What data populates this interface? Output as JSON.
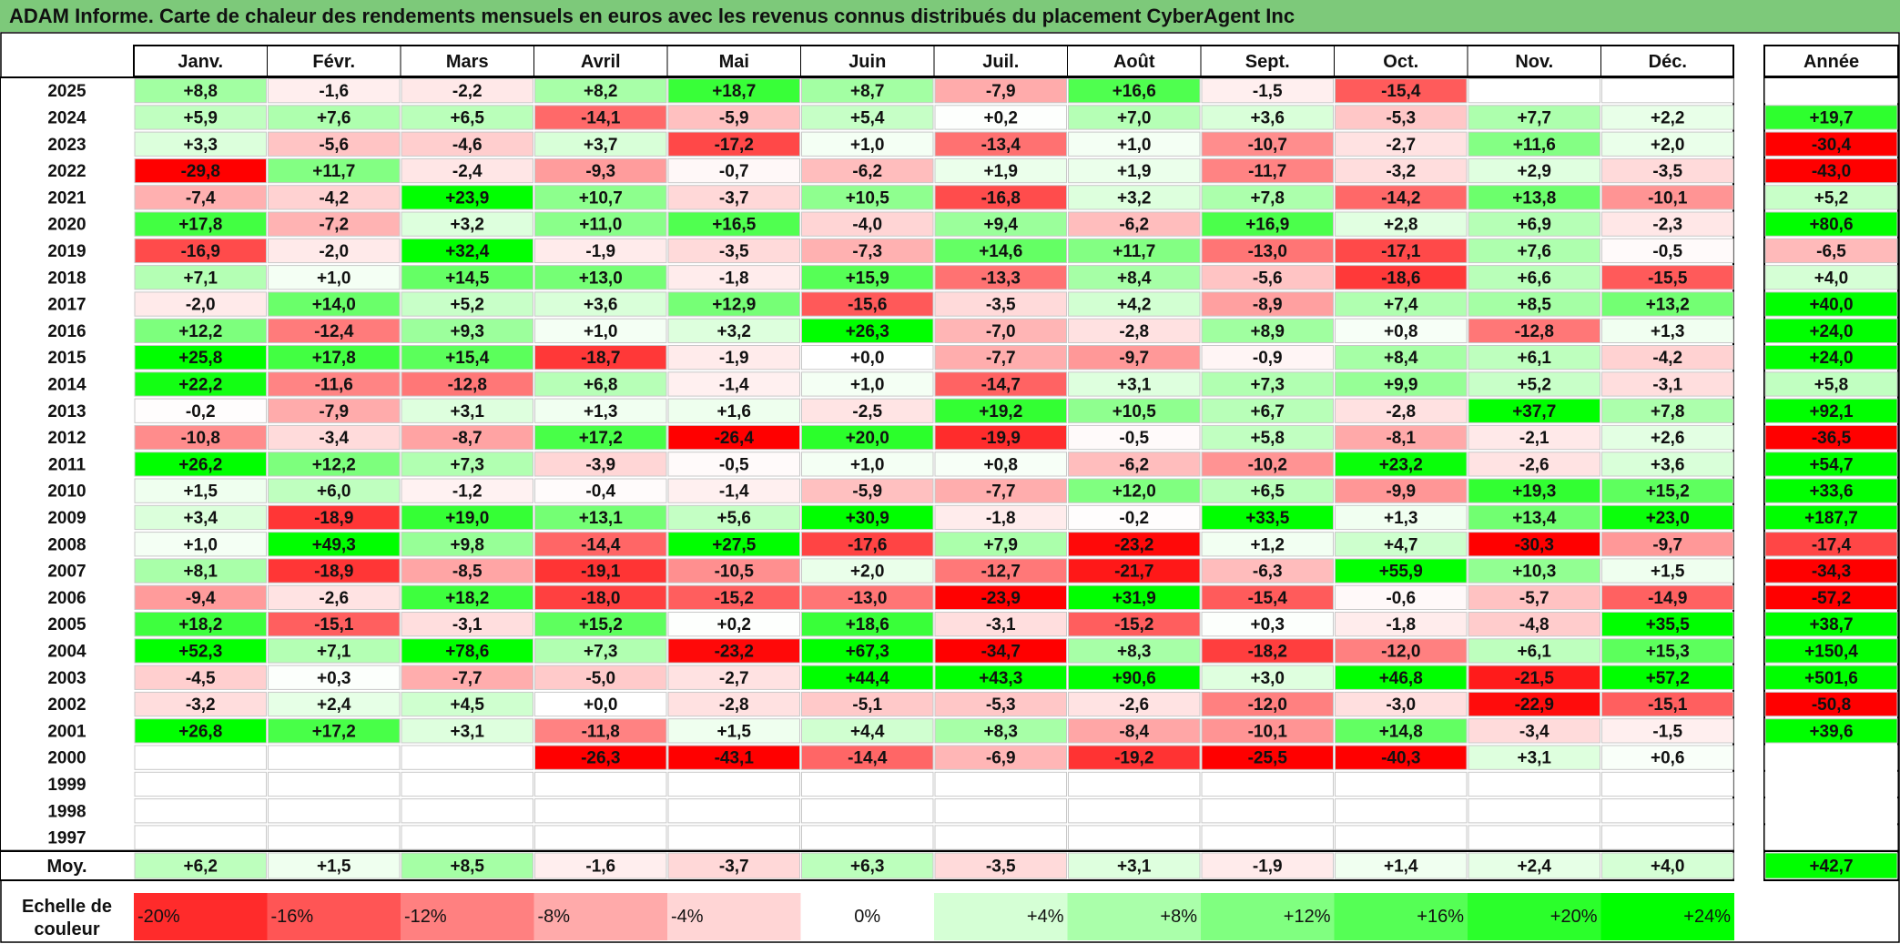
{
  "title": "ADAM Informe. Carte de chaleur des rendements mensuels en euros avec les revenus connus distribués du placement CyberAgent Inc",
  "chart_data": {
    "type": "heatmap",
    "months": [
      "Janv.",
      "Févr.",
      "Mars",
      "Avril",
      "Mai",
      "Juin",
      "Juil.",
      "Août",
      "Sept.",
      "Oct.",
      "Nov.",
      "Déc."
    ],
    "annual_header": "Année",
    "years": [
      "2025",
      "2024",
      "2023",
      "2022",
      "2021",
      "2020",
      "2019",
      "2018",
      "2017",
      "2016",
      "2015",
      "2014",
      "2013",
      "2012",
      "2011",
      "2010",
      "2009",
      "2008",
      "2007",
      "2006",
      "2005",
      "2004",
      "2003",
      "2002",
      "2001",
      "2000",
      "1999",
      "1998",
      "1997"
    ],
    "values": [
      [
        8.8,
        -1.6,
        -2.2,
        8.2,
        18.7,
        8.7,
        -7.9,
        16.6,
        -1.5,
        -15.4,
        null,
        null
      ],
      [
        5.9,
        7.6,
        6.5,
        -14.1,
        -5.9,
        5.4,
        0.2,
        7.0,
        3.6,
        -5.3,
        7.7,
        2.2
      ],
      [
        3.3,
        -5.6,
        -4.6,
        3.7,
        -17.2,
        1.0,
        -13.4,
        1.0,
        -10.7,
        -2.7,
        11.6,
        2.0
      ],
      [
        -29.8,
        11.7,
        -2.4,
        -9.3,
        -0.7,
        -6.2,
        1.9,
        1.9,
        -11.7,
        -3.2,
        2.9,
        -3.5
      ],
      [
        -7.4,
        -4.2,
        23.9,
        10.7,
        -3.7,
        10.5,
        -16.8,
        3.2,
        7.8,
        -14.2,
        13.8,
        -10.1
      ],
      [
        17.8,
        -7.2,
        3.2,
        11.0,
        16.5,
        -4.0,
        9.4,
        -6.2,
        16.9,
        2.8,
        6.9,
        -2.3
      ],
      [
        -16.9,
        -2.0,
        32.4,
        -1.9,
        -3.5,
        -7.3,
        14.6,
        11.7,
        -13.0,
        -17.1,
        7.6,
        -0.5
      ],
      [
        7.1,
        1.0,
        14.5,
        13.0,
        -1.8,
        15.9,
        -13.3,
        8.4,
        -5.6,
        -18.6,
        6.6,
        -15.5
      ],
      [
        -2.0,
        14.0,
        5.2,
        3.6,
        12.9,
        -15.6,
        -3.5,
        4.2,
        -8.9,
        7.4,
        8.5,
        13.2
      ],
      [
        12.2,
        -12.4,
        9.3,
        1.0,
        3.2,
        26.3,
        -7.0,
        -2.8,
        8.9,
        0.8,
        -12.8,
        1.3
      ],
      [
        25.8,
        17.8,
        15.4,
        -18.7,
        -1.9,
        0.0,
        -7.7,
        -9.7,
        -0.9,
        8.4,
        6.1,
        -4.2
      ],
      [
        22.2,
        -11.6,
        -12.8,
        6.8,
        -1.4,
        1.0,
        -14.7,
        3.1,
        7.3,
        9.9,
        5.2,
        -3.1
      ],
      [
        -0.2,
        -7.9,
        3.1,
        1.3,
        1.6,
        -2.5,
        19.2,
        10.5,
        6.7,
        -2.8,
        37.7,
        7.8
      ],
      [
        -10.8,
        -3.4,
        -8.7,
        17.2,
        -26.4,
        20.0,
        -19.9,
        -0.5,
        5.8,
        -8.1,
        -2.1,
        2.6
      ],
      [
        26.2,
        12.2,
        7.3,
        -3.9,
        -0.5,
        1.0,
        0.8,
        -6.2,
        -10.2,
        23.2,
        -2.6,
        3.6
      ],
      [
        1.5,
        6.0,
        -1.2,
        -0.4,
        -1.4,
        -5.9,
        -7.7,
        12.0,
        6.5,
        -9.9,
        19.3,
        15.2
      ],
      [
        3.4,
        -18.9,
        19.0,
        13.1,
        5.6,
        30.9,
        -1.8,
        -0.2,
        33.5,
        1.3,
        13.4,
        23.0
      ],
      [
        1.0,
        49.3,
        9.8,
        -14.4,
        27.5,
        -17.6,
        7.9,
        -23.2,
        1.2,
        4.7,
        -30.3,
        -9.7
      ],
      [
        8.1,
        -18.9,
        -8.5,
        -19.1,
        -10.5,
        2.0,
        -12.7,
        -21.7,
        -6.3,
        55.9,
        10.3,
        1.5
      ],
      [
        -9.4,
        -2.6,
        18.2,
        -18.0,
        -15.2,
        -13.0,
        -23.9,
        31.9,
        -15.4,
        -0.6,
        -5.7,
        -14.9
      ],
      [
        18.2,
        -15.1,
        -3.1,
        15.2,
        0.2,
        18.6,
        -3.1,
        -15.2,
        0.3,
        -1.8,
        -4.8,
        35.5
      ],
      [
        52.3,
        7.1,
        78.6,
        7.3,
        -23.2,
        67.3,
        -34.7,
        8.3,
        -18.2,
        -12.0,
        6.1,
        15.3
      ],
      [
        -4.5,
        0.3,
        -7.7,
        -5.0,
        -2.7,
        44.4,
        43.3,
        90.6,
        3.0,
        46.8,
        -21.5,
        57.2
      ],
      [
        -3.2,
        2.4,
        4.5,
        0.0,
        -2.8,
        -5.1,
        -5.3,
        -2.6,
        -12.0,
        -3.0,
        -22.9,
        -15.1
      ],
      [
        26.8,
        17.2,
        3.1,
        -11.8,
        1.5,
        4.4,
        8.3,
        -8.4,
        -10.1,
        14.8,
        -3.4,
        -1.5
      ],
      [
        null,
        null,
        null,
        -26.3,
        -43.1,
        -14.4,
        -6.9,
        -19.2,
        -25.5,
        -40.3,
        3.1,
        0.6
      ],
      [
        null,
        null,
        null,
        null,
        null,
        null,
        null,
        null,
        null,
        null,
        null,
        null
      ],
      [
        null,
        null,
        null,
        null,
        null,
        null,
        null,
        null,
        null,
        null,
        null,
        null
      ],
      [
        null,
        null,
        null,
        null,
        null,
        null,
        null,
        null,
        null,
        null,
        null,
        null
      ]
    ],
    "annual": [
      null,
      19.7,
      -30.4,
      -43.0,
      5.2,
      80.6,
      -6.5,
      4.0,
      40.0,
      24.0,
      24.0,
      5.8,
      92.1,
      -36.5,
      54.7,
      33.6,
      187.7,
      -17.4,
      -34.3,
      -57.2,
      38.7,
      150.4,
      501.6,
      -50.8,
      39.6,
      null,
      null,
      null,
      null
    ],
    "average_label": "Moy.",
    "average_values": [
      6.2,
      1.5,
      8.5,
      -1.6,
      -3.7,
      6.3,
      -3.5,
      3.1,
      -1.9,
      1.4,
      2.4,
      4.0
    ],
    "average_annual": 42.7,
    "scale_label": "Echelle de couleur",
    "scale_steps": [
      "-20%",
      "-16%",
      "-12%",
      "-8%",
      "-4%",
      "0%",
      "+4%",
      "+8%",
      "+12%",
      "+16%",
      "+20%",
      "+24%"
    ],
    "scale_values": [
      -20,
      -16,
      -12,
      -8,
      -4,
      0,
      4,
      8,
      12,
      16,
      20,
      24
    ],
    "color_negative": "#ff0000",
    "color_zero": "#ffffff",
    "color_positive": "#00ff00"
  }
}
